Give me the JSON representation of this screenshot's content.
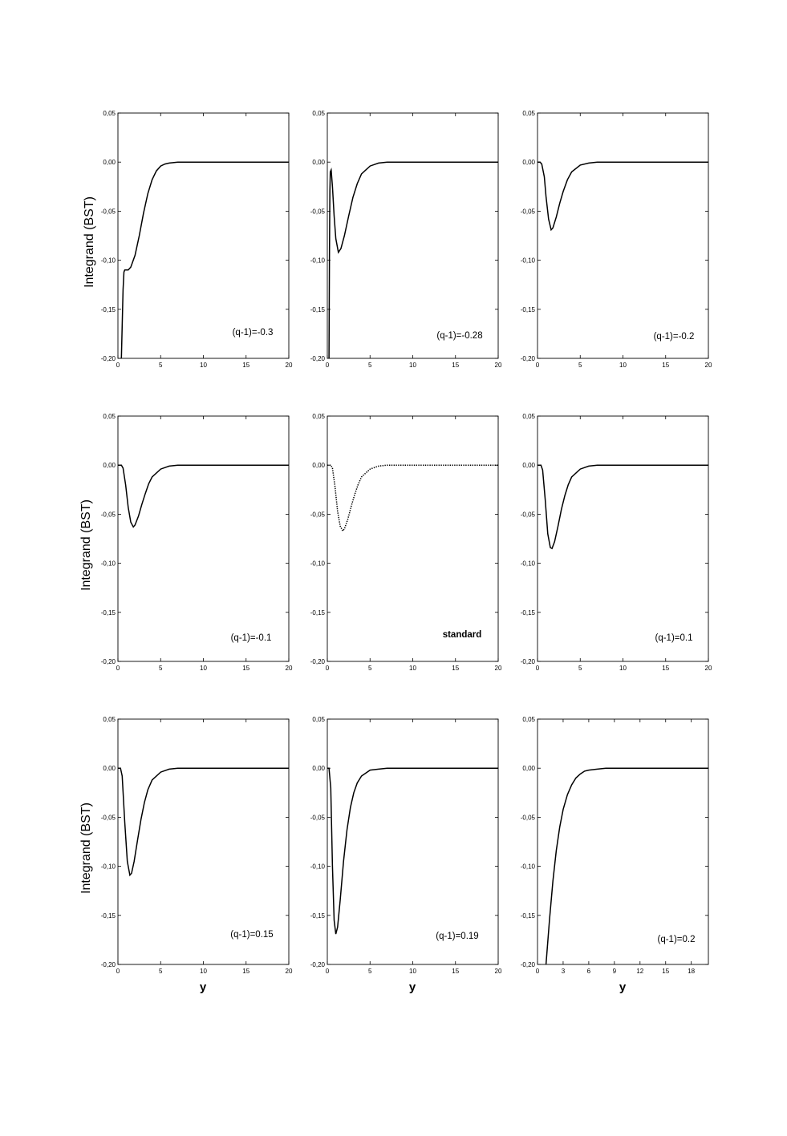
{
  "ylabel": "Integrand (BST)",
  "xlabel": "y",
  "chart_data": [
    {
      "type": "line",
      "annotation": "(q-1)=-0.3",
      "xlim": [
        0,
        20
      ],
      "ylim": [
        -0.2,
        0.05
      ],
      "x_ticks": [
        "0",
        "5",
        "10",
        "15",
        "20"
      ],
      "y_ticks": [
        "0,05",
        "0,00",
        "-0,05",
        "-0,10",
        "-0,15",
        "-0,20"
      ],
      "x": [
        0.4,
        0.6,
        0.7,
        0.8,
        1.0,
        1.2,
        1.5,
        2,
        2.5,
        3,
        3.5,
        4,
        4.5,
        5,
        5.5,
        6,
        7,
        8,
        10,
        20
      ],
      "y": [
        -0.2,
        -0.13,
        -0.112,
        -0.11,
        -0.11,
        -0.11,
        -0.107,
        -0.095,
        -0.075,
        -0.052,
        -0.032,
        -0.018,
        -0.009,
        -0.004,
        -0.002,
        -0.001,
        0,
        0,
        0,
        0
      ]
    },
    {
      "type": "line",
      "annotation": "(q-1)=-0.28",
      "xlim": [
        0,
        20
      ],
      "ylim": [
        -0.2,
        0.05
      ],
      "x_ticks": [
        "0",
        "5",
        "10",
        "15",
        "20"
      ],
      "y_ticks": [
        "0,05",
        "0,00",
        "-0,05",
        "-0,10",
        "-0,15",
        "-0,20"
      ],
      "x": [
        0.2,
        0.25,
        0.3,
        0.35,
        0.45,
        0.6,
        0.8,
        1.0,
        1.3,
        1.6,
        2,
        2.5,
        3,
        3.5,
        4,
        5,
        6,
        7,
        8,
        10,
        20
      ],
      "y": [
        -0.2,
        -0.09,
        -0.03,
        -0.01,
        -0.008,
        -0.025,
        -0.055,
        -0.078,
        -0.092,
        -0.088,
        -0.075,
        -0.055,
        -0.036,
        -0.022,
        -0.012,
        -0.004,
        -0.001,
        0,
        0,
        0,
        0
      ]
    },
    {
      "type": "line",
      "annotation": "(q-1)=-0.2",
      "xlim": [
        0,
        20
      ],
      "ylim": [
        -0.2,
        0.05
      ],
      "x_ticks": [
        "0",
        "5",
        "10",
        "15",
        "20"
      ],
      "y_ticks": [
        "0,05",
        "0,00",
        "-0,05",
        "-0,10",
        "-0,15",
        "-0,20"
      ],
      "x": [
        0,
        0.3,
        0.5,
        0.8,
        1.0,
        1.3,
        1.6,
        1.8,
        2.2,
        2.6,
        3,
        3.5,
        4,
        5,
        6,
        7,
        8,
        10,
        20
      ],
      "y": [
        0,
        0,
        -0.002,
        -0.015,
        -0.035,
        -0.058,
        -0.069,
        -0.067,
        -0.056,
        -0.042,
        -0.03,
        -0.018,
        -0.01,
        -0.003,
        -0.001,
        0,
        0,
        0,
        0
      ]
    },
    {
      "type": "line",
      "annotation": "(q-1)=-0.1",
      "xlim": [
        0,
        20
      ],
      "ylim": [
        -0.2,
        0.05
      ],
      "x_ticks": [
        "0",
        "5",
        "10",
        "15",
        "20"
      ],
      "y_ticks": [
        "0,05",
        "0,00",
        "-0,05",
        "-0,10",
        "-0,15",
        "-0,20"
      ],
      "x": [
        0,
        0.4,
        0.6,
        0.9,
        1.2,
        1.5,
        1.8,
        2.0,
        2.4,
        2.8,
        3.2,
        3.6,
        4,
        5,
        6,
        7,
        8,
        10,
        20
      ],
      "y": [
        0,
        0,
        -0.003,
        -0.02,
        -0.043,
        -0.058,
        -0.063,
        -0.061,
        -0.052,
        -0.04,
        -0.029,
        -0.019,
        -0.012,
        -0.004,
        -0.001,
        0,
        0,
        0,
        0
      ]
    },
    {
      "type": "line",
      "annotation": "standard",
      "dotted": true,
      "xlim": [
        0,
        20
      ],
      "ylim": [
        -0.2,
        0.05
      ],
      "x_ticks": [
        "0",
        "5",
        "10",
        "15",
        "20"
      ],
      "y_ticks": [
        "0,05",
        "0,00",
        "-0,05",
        "-0,10",
        "-0,15",
        "-0,20"
      ],
      "x": [
        0,
        0.4,
        0.6,
        0.9,
        1.2,
        1.5,
        1.8,
        2.0,
        2.4,
        2.8,
        3.2,
        3.6,
        4,
        5,
        6,
        7,
        8,
        10,
        20
      ],
      "y": [
        0,
        0,
        -0.003,
        -0.022,
        -0.047,
        -0.062,
        -0.067,
        -0.065,
        -0.055,
        -0.042,
        -0.03,
        -0.02,
        -0.012,
        -0.004,
        -0.001,
        0,
        0,
        0,
        0
      ]
    },
    {
      "type": "line",
      "annotation": "(q-1)=0.1",
      "xlim": [
        0,
        20
      ],
      "ylim": [
        -0.2,
        0.05
      ],
      "x_ticks": [
        "0",
        "5",
        "10",
        "15",
        "20"
      ],
      "y_ticks": [
        "0,05",
        "0,00",
        "-0,05",
        "-0,10",
        "-0,15",
        "-0,20"
      ],
      "x": [
        0,
        0.4,
        0.6,
        0.9,
        1.2,
        1.5,
        1.7,
        2.0,
        2.4,
        2.8,
        3.2,
        3.6,
        4,
        5,
        6,
        7,
        8,
        10,
        20
      ],
      "y": [
        0,
        0,
        -0.005,
        -0.035,
        -0.07,
        -0.084,
        -0.085,
        -0.078,
        -0.062,
        -0.045,
        -0.031,
        -0.02,
        -0.012,
        -0.004,
        -0.001,
        0,
        0,
        0,
        0
      ]
    },
    {
      "type": "line",
      "annotation": "(q-1)=0.15",
      "xlim": [
        0,
        20
      ],
      "ylim": [
        -0.2,
        0.05
      ],
      "x_ticks": [
        "0",
        "5",
        "10",
        "15",
        "20"
      ],
      "y_ticks": [
        "0,05",
        "0,00",
        "-0,05",
        "-0,10",
        "-0,15",
        "-0,20"
      ],
      "x": [
        0,
        0.3,
        0.5,
        0.8,
        1.1,
        1.4,
        1.6,
        1.9,
        2.3,
        2.7,
        3.1,
        3.5,
        4,
        5,
        6,
        7,
        8,
        10,
        20
      ],
      "y": [
        0,
        0,
        -0.008,
        -0.055,
        -0.095,
        -0.109,
        -0.107,
        -0.095,
        -0.073,
        -0.052,
        -0.035,
        -0.022,
        -0.012,
        -0.004,
        -0.001,
        0,
        0,
        0,
        0
      ]
    },
    {
      "type": "line",
      "annotation": "(q-1)=0.19",
      "xlim": [
        0,
        20
      ],
      "ylim": [
        -0.2,
        0.05
      ],
      "x_ticks": [
        "0",
        "5",
        "10",
        "15",
        "20"
      ],
      "y_ticks": [
        "0,05",
        "0,00",
        "-0,05",
        "-0,10",
        "-0,15",
        "-0,20"
      ],
      "x": [
        0,
        0.2,
        0.4,
        0.6,
        0.8,
        1.0,
        1.2,
        1.5,
        1.9,
        2.3,
        2.7,
        3.1,
        3.5,
        4,
        5,
        6,
        7,
        8,
        10,
        20
      ],
      "y": [
        0,
        0,
        -0.02,
        -0.1,
        -0.155,
        -0.169,
        -0.162,
        -0.135,
        -0.095,
        -0.063,
        -0.04,
        -0.025,
        -0.015,
        -0.008,
        -0.002,
        -0.001,
        0,
        0,
        0,
        0
      ]
    },
    {
      "type": "line",
      "annotation": "(q-1)=0.2",
      "xlim": [
        0,
        20
      ],
      "ylim": [
        -0.2,
        0.05
      ],
      "x_ticks": [
        "0",
        "3",
        "6",
        "9",
        "12",
        "15",
        "18"
      ],
      "y_ticks": [
        "0,05",
        "0,00",
        "-0,05",
        "-0,10",
        "-0,15",
        "-0,20"
      ],
      "x": [
        1.0,
        1.4,
        1.8,
        2.2,
        2.6,
        3,
        3.5,
        4,
        4.5,
        5,
        5.5,
        6,
        7,
        8,
        9,
        10,
        20
      ],
      "y": [
        -0.2,
        -0.155,
        -0.115,
        -0.084,
        -0.06,
        -0.042,
        -0.027,
        -0.017,
        -0.01,
        -0.006,
        -0.003,
        -0.002,
        -0.001,
        0,
        0,
        0,
        0
      ]
    }
  ]
}
